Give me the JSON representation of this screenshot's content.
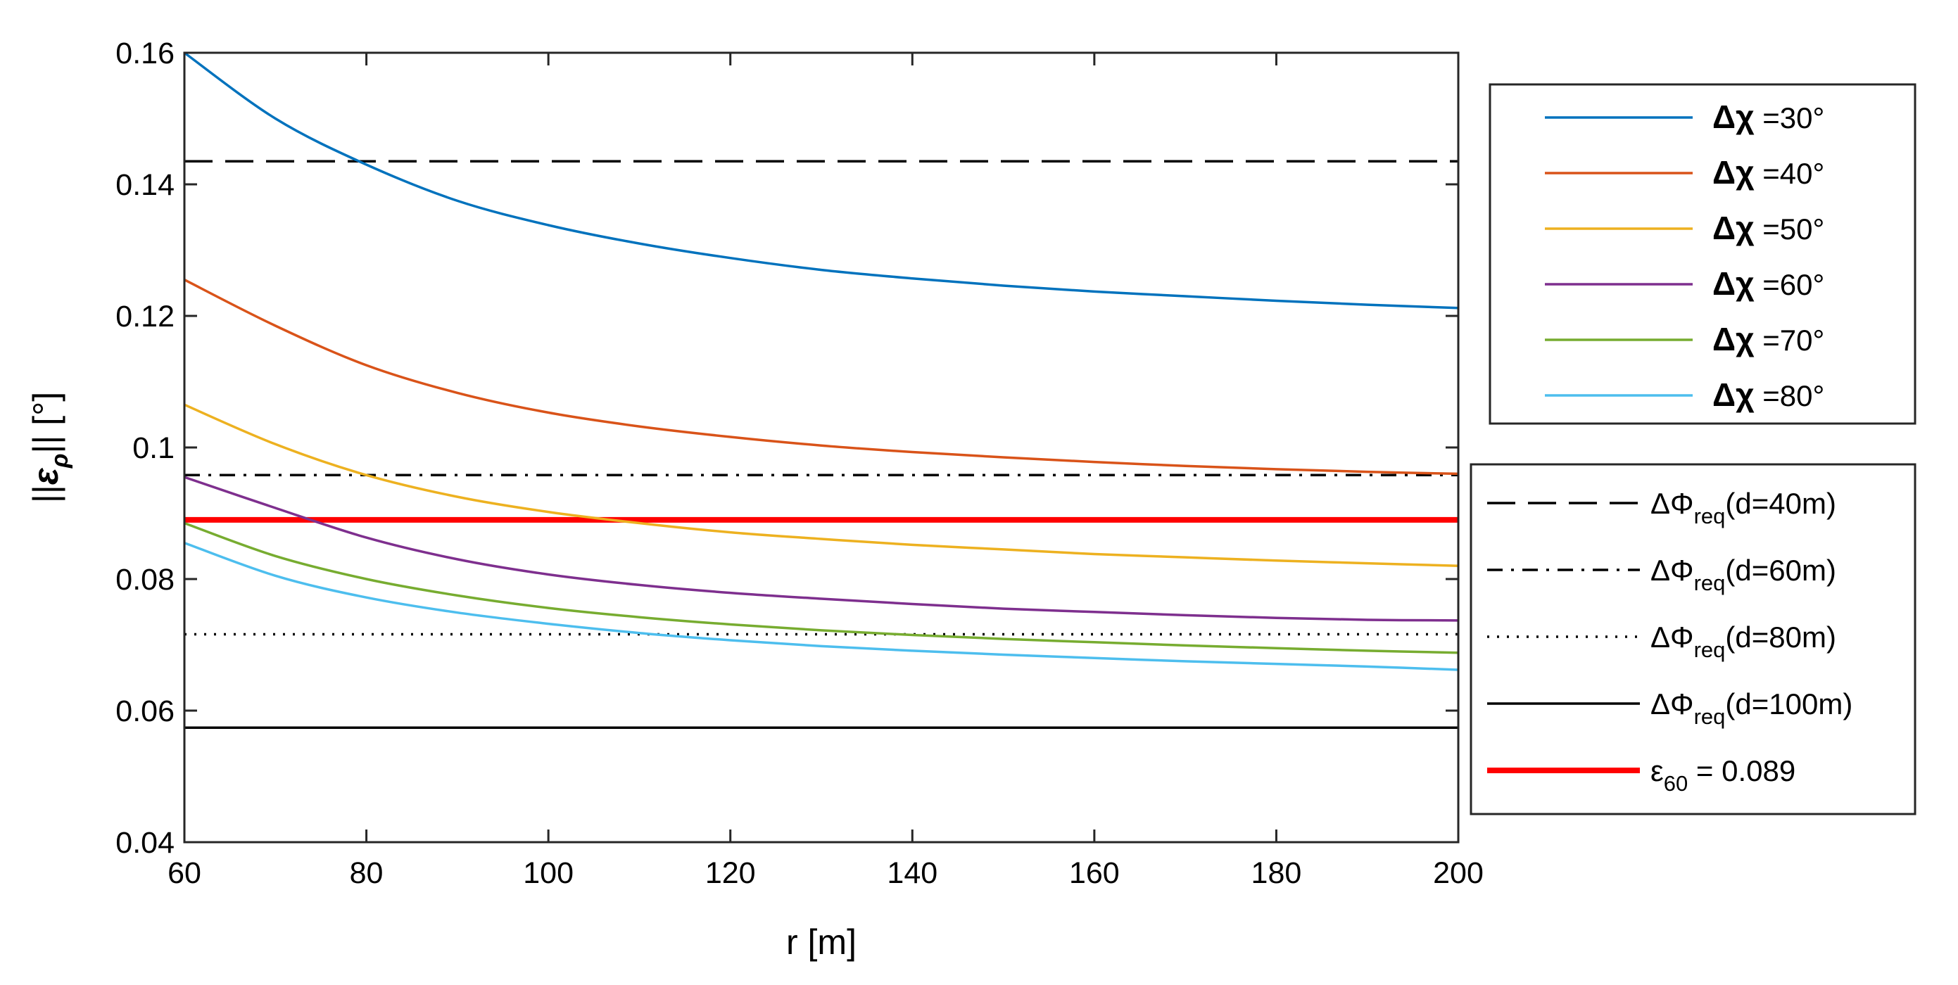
{
  "chart_data": {
    "type": "line",
    "xlabel": "r [m]",
    "ylabel": "||ερ|| [°]",
    "xlim": [
      60,
      200
    ],
    "ylim": [
      0.04,
      0.16
    ],
    "xticks": [
      60,
      80,
      100,
      120,
      140,
      160,
      180,
      200
    ],
    "yticks": [
      0.04,
      0.06,
      0.08,
      0.1,
      0.12,
      0.14,
      0.16
    ],
    "ytick_labels": [
      "0.04",
      "0.06",
      "0.08",
      "0.1",
      "0.12",
      "0.14",
      "0.16"
    ],
    "x": [
      60,
      70,
      80,
      90,
      100,
      110,
      120,
      130,
      140,
      150,
      160,
      170,
      180,
      190,
      200
    ],
    "series": [
      {
        "name": "Δχ =30°",
        "symbol": "Δχ",
        "value_label": "=30°",
        "color": "#0072BD",
        "values": [
          0.16,
          0.15,
          0.143,
          0.1375,
          0.1338,
          0.131,
          0.1288,
          0.127,
          0.1257,
          0.1246,
          0.1237,
          0.123,
          0.1223,
          0.1217,
          0.1212
        ]
      },
      {
        "name": "Δχ =40°",
        "symbol": "Δχ",
        "value_label": "=40°",
        "color": "#D95319",
        "values": [
          0.1255,
          0.1185,
          0.1125,
          0.1083,
          0.1053,
          0.1032,
          0.1016,
          0.1003,
          0.0993,
          0.0985,
          0.0978,
          0.0972,
          0.0967,
          0.0963,
          0.096
        ]
      },
      {
        "name": "Δχ =50°",
        "symbol": "Δχ",
        "value_label": "=50°",
        "color": "#EDB120",
        "values": [
          0.1065,
          0.1005,
          0.0958,
          0.0925,
          0.0902,
          0.0885,
          0.0871,
          0.0861,
          0.0852,
          0.0845,
          0.0838,
          0.0833,
          0.0828,
          0.0824,
          0.082
        ]
      },
      {
        "name": "Δχ =60°",
        "symbol": "Δχ",
        "value_label": "=60°",
        "color": "#7E2F8E",
        "values": [
          0.0955,
          0.0908,
          0.0863,
          0.083,
          0.0807,
          0.0791,
          0.0779,
          0.077,
          0.0762,
          0.0755,
          0.075,
          0.0745,
          0.0741,
          0.0738,
          0.0737
        ]
      },
      {
        "name": "Δχ =70°",
        "symbol": "Δχ",
        "value_label": "=70°",
        "color": "#77AC30",
        "values": [
          0.0885,
          0.0835,
          0.08,
          0.0775,
          0.0756,
          0.0742,
          0.0731,
          0.0722,
          0.0715,
          0.0709,
          0.0704,
          0.0699,
          0.0695,
          0.0691,
          0.0688
        ]
      },
      {
        "name": "Δχ =80°",
        "symbol": "Δχ",
        "value_label": "=80°",
        "color": "#4DBEEE",
        "values": [
          0.0855,
          0.0805,
          0.0772,
          0.0749,
          0.0732,
          0.0718,
          0.0707,
          0.0698,
          0.0691,
          0.0685,
          0.068,
          0.0675,
          0.0671,
          0.0667,
          0.0662
        ]
      }
    ],
    "reference_lines": [
      {
        "name": "ΔΦreq(d=40m)",
        "prefix": "ΔΦ",
        "sub": "req",
        "suffix": "(d=40m)",
        "value": 0.1435,
        "style": "dashed",
        "color": "#000000"
      },
      {
        "name": "ΔΦreq(d=60m)",
        "prefix": "ΔΦ",
        "sub": "req",
        "suffix": "(d=60m)",
        "value": 0.0958,
        "style": "dashdot",
        "color": "#000000"
      },
      {
        "name": "ΔΦreq(d=80m)",
        "prefix": "ΔΦ",
        "sub": "req",
        "suffix": "(d=80m)",
        "value": 0.0716,
        "style": "dotted",
        "color": "#000000"
      },
      {
        "name": "ΔΦreq(d=100m)",
        "prefix": "ΔΦ",
        "sub": "req",
        "suffix": "(d=100m)",
        "value": 0.0574,
        "style": "solid",
        "color": "#000000"
      },
      {
        "name": "ε60 = 0.089",
        "prefix": "ε",
        "sub": "60",
        "suffix": " = 0.089",
        "value": 0.089,
        "style": "solid-thick",
        "color": "#FF0000"
      }
    ],
    "legend_placement": "outside-right, two boxes (top: curves, bottom: reference lines)"
  }
}
